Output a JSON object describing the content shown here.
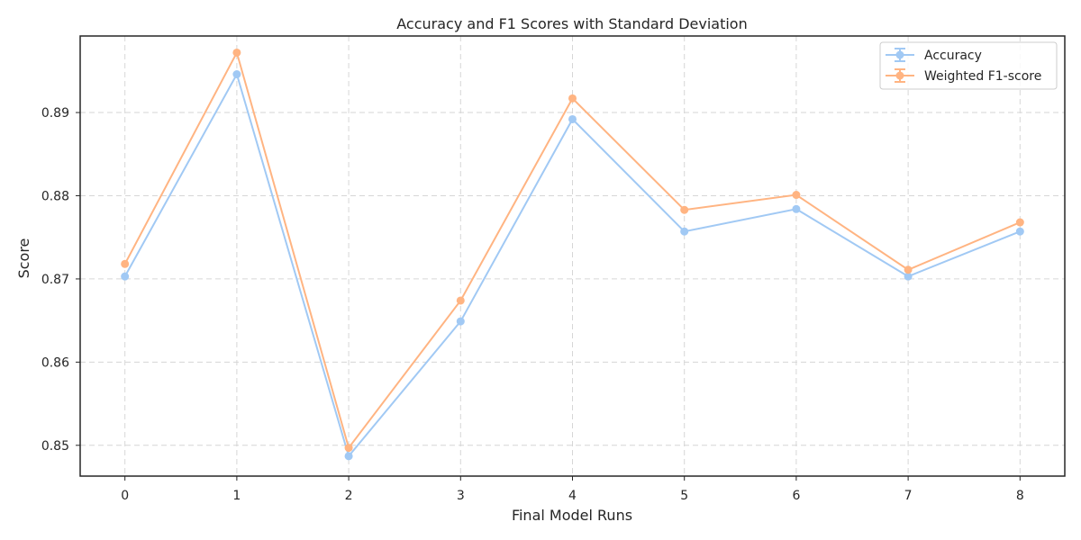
{
  "chart_data": {
    "type": "line",
    "title": "Accuracy and F1 Scores with Standard Deviation",
    "xlabel": "Final Model Runs",
    "ylabel": "Score",
    "x": [
      0,
      1,
      2,
      3,
      4,
      5,
      6,
      7,
      8
    ],
    "x_tick_labels": [
      "0",
      "1",
      "2",
      "3",
      "4",
      "5",
      "6",
      "7",
      "8"
    ],
    "y_ticks": [
      0.85,
      0.86,
      0.87,
      0.88,
      0.89
    ],
    "y_tick_labels": [
      "0.85",
      "0.86",
      "0.87",
      "0.88",
      "0.89"
    ],
    "xlim": [
      -0.4,
      8.4
    ],
    "ylim": [
      0.8463,
      0.8992
    ],
    "grid": true,
    "legend_position": "top-right",
    "series": [
      {
        "name": "Accuracy",
        "color": "#a1c9f4",
        "values": [
          0.8703,
          0.8946,
          0.8487,
          0.8649,
          0.8892,
          0.8757,
          0.8784,
          0.8703,
          0.8757
        ]
      },
      {
        "name": "Weighted F1-score",
        "color": "#ffb482",
        "values": [
          0.8718,
          0.8972,
          0.8497,
          0.8674,
          0.8917,
          0.8783,
          0.8801,
          0.8711,
          0.8768
        ]
      }
    ]
  }
}
